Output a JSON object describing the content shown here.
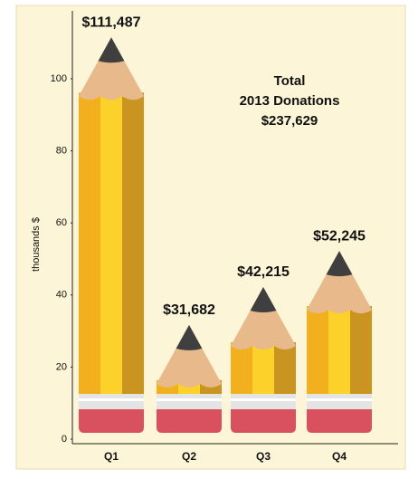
{
  "chart_data": {
    "type": "bar",
    "y_label": "thousands $",
    "categories": [
      "Q1",
      "Q2",
      "Q3",
      "Q4"
    ],
    "values": [
      111.487,
      31.682,
      42.215,
      52.245
    ],
    "value_labels": [
      "$111,487",
      "$31,682",
      "$42,215",
      "$52,245"
    ],
    "color": "#fcd22a",
    "annotation": [
      "Total",
      "2013 Donations",
      "$237,629"
    ],
    "ylim": [
      0,
      115
    ],
    "yticks": [
      0,
      20,
      40,
      60,
      80,
      100
    ],
    "grid": false
  }
}
